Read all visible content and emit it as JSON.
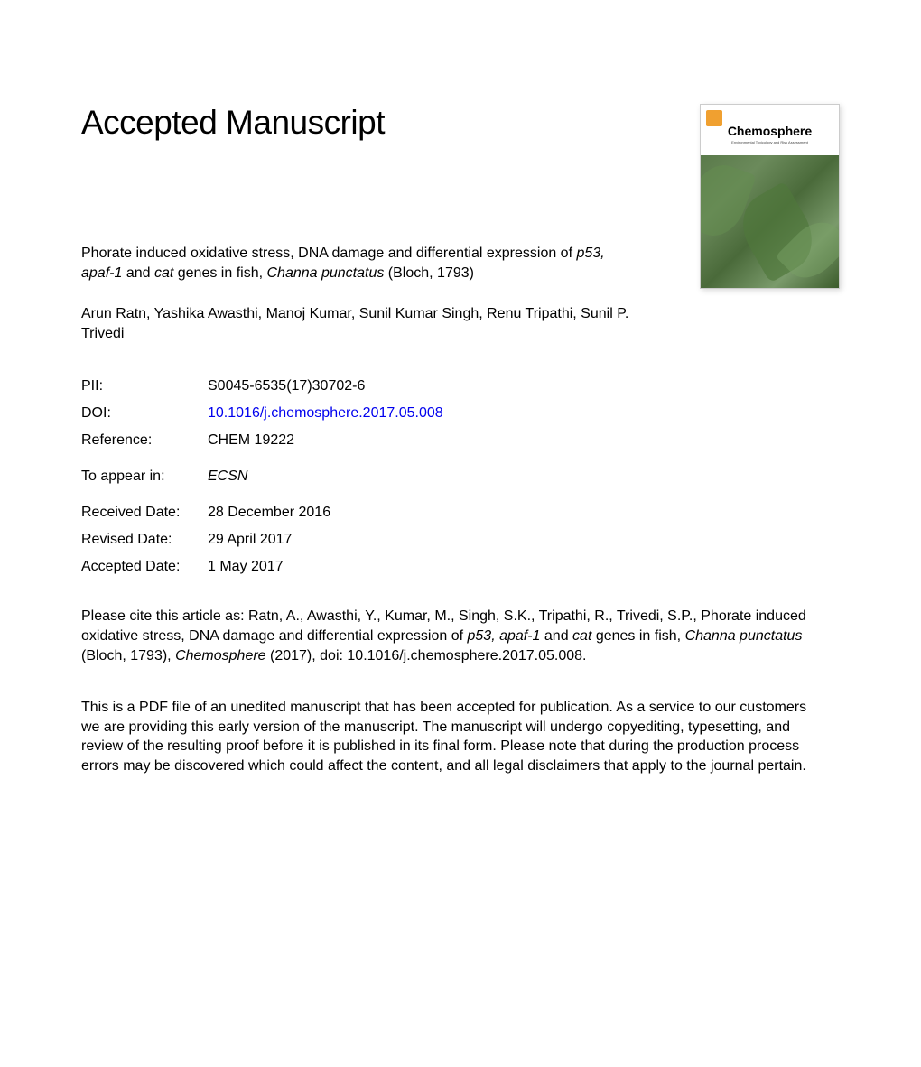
{
  "heading": "Accepted Manuscript",
  "journal": {
    "name": "Chemosphere",
    "subtitle": "Environmental Toxicology and Risk Assessment"
  },
  "article": {
    "title_pre": "Phorate induced oxidative stress, DNA damage and differential expression of ",
    "title_italic1": "p53, apaf-1",
    "title_mid": " and ",
    "title_italic2": "cat",
    "title_mid2": " genes in fish, ",
    "title_italic3": "Channa punctatus",
    "title_post": " (Bloch, 1793)"
  },
  "authors": "Arun Ratn, Yashika Awasthi, Manoj Kumar, Sunil Kumar Singh, Renu Tripathi, Sunil P. Trivedi",
  "meta": {
    "pii_label": "PII:",
    "pii_value": "S0045-6535(17)30702-6",
    "doi_label": "DOI:",
    "doi_value": "10.1016/j.chemosphere.2017.05.008",
    "reference_label": "Reference:",
    "reference_value": "CHEM 19222",
    "appear_label": "To appear in:",
    "appear_value": "ECSN",
    "received_label": "Received Date:",
    "received_value": "28 December 2016",
    "revised_label": "Revised Date:",
    "revised_value": "29 April 2017",
    "accepted_label": "Accepted Date:",
    "accepted_value": "1 May 2017"
  },
  "citation": {
    "pre": "Please cite this article as: Ratn, A., Awasthi, Y., Kumar, M., Singh, S.K., Tripathi, R., Trivedi, S.P., Phorate induced oxidative stress, DNA damage and differential expression of ",
    "i1": "p53, apaf-1",
    "mid1": " and ",
    "i2": "cat",
    "mid2": " genes in fish, ",
    "i3": "Channa punctatus",
    "mid3": " (Bloch, 1793), ",
    "i4": "Chemosphere",
    "post": " (2017), doi: 10.1016/j.chemosphere.2017.05.008."
  },
  "disclaimer": "This is a PDF file of an unedited manuscript that has been accepted for publication. As a service to our customers we are providing this early version of the manuscript. The manuscript will undergo copyediting, typesetting, and review of the resulting proof before it is published in its final form. Please note that during the production process errors may be discovered which could affect the content, and all legal disclaimers that apply to the journal pertain.",
  "colors": {
    "text": "#000000",
    "link": "#0000ee",
    "background": "#ffffff"
  },
  "typography": {
    "heading_fontsize": 37,
    "body_fontsize": 16,
    "font_family": "Arial, Helvetica, sans-serif"
  }
}
